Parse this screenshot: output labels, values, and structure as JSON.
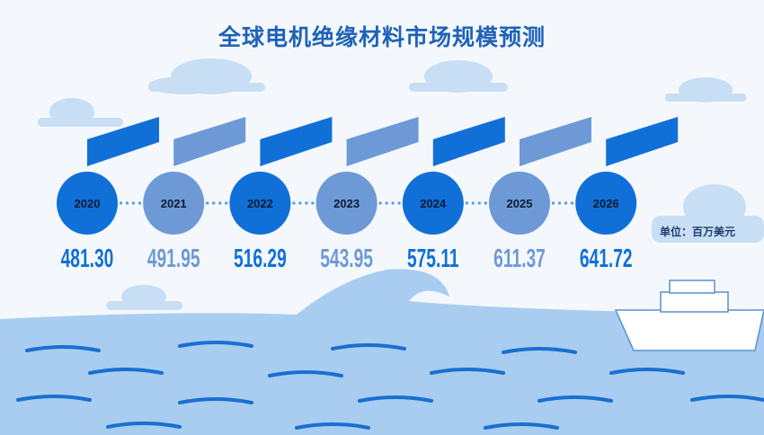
{
  "chart_data": {
    "type": "table",
    "title": "全球电机绝缘材料市场规模预测",
    "unit": "单位：百万美元",
    "categories": [
      "2020",
      "2021",
      "2022",
      "2023",
      "2024",
      "2025",
      "2026"
    ],
    "values": [
      "481.30",
      "491.95",
      "516.29",
      "543.95",
      "575.11",
      "611.37",
      "641.72"
    ],
    "colors": {
      "dark": "#1170d8",
      "light": "#6d9ad6",
      "title": "#1f62b8",
      "sea": "#a8cdf0"
    }
  }
}
